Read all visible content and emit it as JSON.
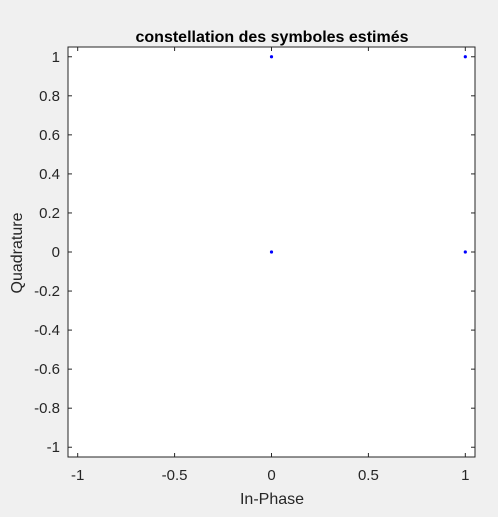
{
  "chart_data": {
    "type": "scatter",
    "title": "constellation des symboles estimés",
    "xlabel": "In-Phase",
    "ylabel": "Quadrature",
    "xlim": [
      -1.05,
      1.05
    ],
    "ylim": [
      -1.05,
      1.05
    ],
    "xticks": [
      -1,
      -0.5,
      0,
      0.5,
      1
    ],
    "xtick_labels": [
      "-1",
      "-0.5",
      "0",
      "0.5",
      "1"
    ],
    "yticks": [
      1,
      0.8,
      0.6,
      0.4,
      0.2,
      0,
      -0.2,
      -0.4,
      -0.6,
      -0.8,
      -1
    ],
    "ytick_labels": [
      "1",
      "0.8",
      "0.6",
      "0.4",
      "0.2",
      "0",
      "-0.2",
      "-0.4",
      "-0.6",
      "-0.8",
      "-1"
    ],
    "grid": false,
    "series": [
      {
        "name": "symbols",
        "color": "#0000ff",
        "points": [
          {
            "x": 0,
            "y": 1
          },
          {
            "x": 1,
            "y": 1
          },
          {
            "x": 0,
            "y": 0
          },
          {
            "x": 1,
            "y": 0
          }
        ]
      }
    ]
  },
  "colors": {
    "figure_background": "#f0f0f0",
    "axes_background": "#ffffff",
    "axis_color": "#262626"
  }
}
